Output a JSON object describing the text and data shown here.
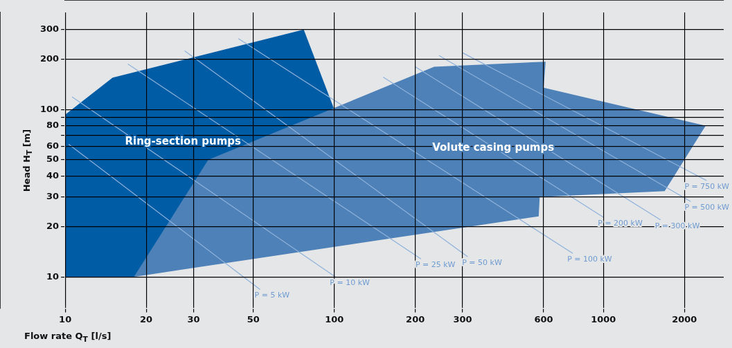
{
  "chart_data": {
    "type": "area",
    "xlabel": "Flow rate Q$_{T}$ [l/s]",
    "ylabel": "Head H$_{T}$ [m]",
    "log": "xy",
    "xlim": [
      10,
      2800
    ],
    "ylim": [
      6.5,
      380
    ],
    "xticks": [
      10,
      20,
      30,
      50,
      100,
      200,
      300,
      600,
      1000,
      2000
    ],
    "yticks": [
      10,
      20,
      30,
      40,
      50,
      60,
      {
        "value": 70,
        "label": null
      },
      80,
      {
        "value": 90,
        "label": null
      },
      100,
      200,
      300
    ],
    "grid": true,
    "legend": false,
    "marker": "none",
    "series": [
      {
        "name": "Ring-section pumps",
        "color": "#005ca5",
        "x": [
          10,
          10,
          15,
          77,
          100,
          18
        ],
        "values": [
          10,
          93,
          155,
          300,
          100,
          10
        ]
      },
      {
        "name": "Volute casing pumps",
        "color": "#4d81b8",
        "x": [
          18,
          34,
          235,
          610,
          600,
          2400,
          1690,
          580,
          575
        ],
        "values": [
          10,
          50,
          180,
          193,
          135,
          80,
          32.5,
          30,
          23
        ]
      },
      {
        "name": "P = 5 kW",
        "type": "line",
        "color": "#8eb1da",
        "x": [
          10.3,
          53
        ],
        "values": [
          62,
          8.4
        ]
      },
      {
        "name": "P = 10 kW",
        "type": "line",
        "color": "#8eb1da",
        "x": [
          10.6,
          101
        ],
        "values": [
          119,
          10
        ]
      },
      {
        "name": "P = 25 kW",
        "type": "line",
        "color": "#8eb1da",
        "x": [
          17.1,
          210
        ],
        "values": [
          187,
          12.8
        ]
      },
      {
        "name": "P = 50 kW",
        "type": "line",
        "color": "#8eb1da",
        "x": [
          27.8,
          313
        ],
        "values": [
          224,
          13.2
        ]
      },
      {
        "name": "P = 100 kW",
        "type": "line",
        "color": "#8eb1da",
        "x": [
          44,
          770
        ],
        "values": [
          265,
          13.8
        ]
      },
      {
        "name": "P = 200 kW",
        "type": "line",
        "color": "#8eb1da",
        "x": [
          152,
          1000
        ],
        "values": [
          156,
          22.7
        ]
      },
      {
        "name": "P = 300 kW",
        "type": "line",
        "color": "#8eb1da",
        "x": [
          200,
          1630
        ],
        "values": [
          180,
          21.9
        ]
      },
      {
        "name": "P = 500 kW",
        "type": "line",
        "color": "#8eb1da",
        "x": [
          245,
          2110
        ],
        "values": [
          210,
          28.2
        ]
      },
      {
        "name": "P = 750 kW",
        "type": "line",
        "color": "#8eb1da",
        "x": [
          300,
          2420
        ],
        "values": [
          218,
          37.6
        ]
      }
    ]
  }
}
